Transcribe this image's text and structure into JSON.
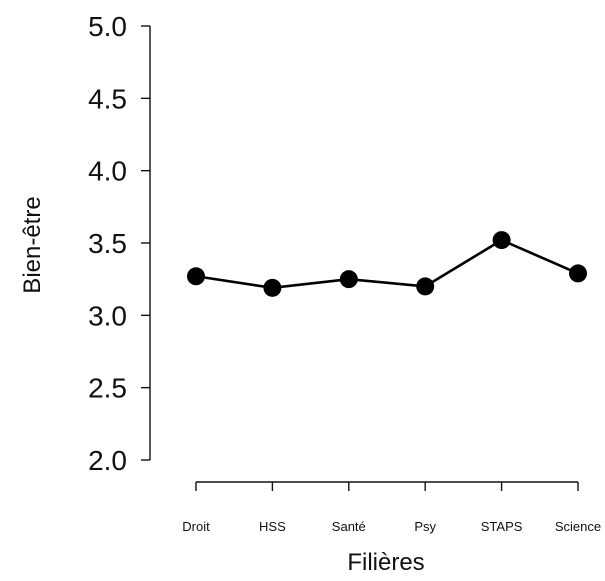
{
  "chart_data": {
    "type": "line",
    "categories": [
      "Droit",
      "HSS",
      "Santé",
      "Psy",
      "STAPS",
      "Science"
    ],
    "values": [
      3.27,
      3.19,
      3.25,
      3.2,
      3.52,
      3.29
    ],
    "xlabel": "Filières",
    "ylabel": "Bien-être",
    "ylim": [
      2.0,
      5.0
    ],
    "yticks": [
      "2.0",
      "2.5",
      "3.0",
      "3.5",
      "4.0",
      "4.5",
      "5.0"
    ],
    "grid": false,
    "legend": "none"
  }
}
